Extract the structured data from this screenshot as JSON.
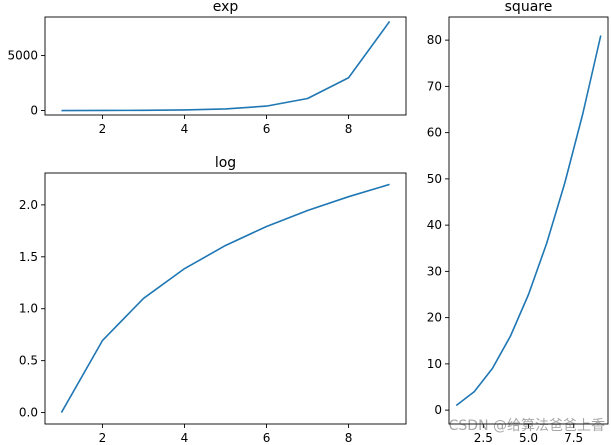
{
  "watermark": "CSDN @给算法爸爸上香",
  "chart_data": [
    {
      "id": "exp",
      "type": "line",
      "title": "exp",
      "xlabel": "",
      "ylabel": "",
      "x": [
        1,
        2,
        3,
        4,
        5,
        6,
        7,
        8,
        9
      ],
      "series": [
        {
          "values": [
            2.72,
            7.39,
            20.09,
            54.6,
            148.41,
            403.43,
            1096.63,
            2980.96,
            8103.08
          ],
          "color": "#1f77b4"
        }
      ],
      "xlim": [
        0.6,
        9.4
      ],
      "ylim": [
        -405,
        8508
      ],
      "xticks": [
        2,
        4,
        6,
        8
      ],
      "xtick_labels": [
        "2",
        "4",
        "6",
        "8"
      ],
      "yticks": [
        0,
        5000
      ],
      "ytick_labels": [
        "0",
        "5000"
      ],
      "grid": false
    },
    {
      "id": "log",
      "type": "line",
      "title": "log",
      "xlabel": "",
      "ylabel": "",
      "x": [
        1,
        2,
        3,
        4,
        5,
        6,
        7,
        8,
        9
      ],
      "series": [
        {
          "values": [
            0.0,
            0.693,
            1.099,
            1.386,
            1.609,
            1.792,
            1.946,
            2.079,
            2.197
          ],
          "color": "#1f77b4"
        }
      ],
      "xlim": [
        0.6,
        9.4
      ],
      "ylim": [
        -0.11,
        2.307
      ],
      "xticks": [
        2,
        4,
        6,
        8
      ],
      "xtick_labels": [
        "2",
        "4",
        "6",
        "8"
      ],
      "yticks": [
        0.0,
        0.5,
        1.0,
        1.5,
        2.0
      ],
      "ytick_labels": [
        "0.0",
        "0.5",
        "1.0",
        "1.5",
        "2.0"
      ],
      "grid": false
    },
    {
      "id": "square",
      "type": "line",
      "title": "square",
      "xlabel": "",
      "ylabel": "",
      "x": [
        1,
        2,
        3,
        4,
        5,
        6,
        7,
        8,
        9
      ],
      "series": [
        {
          "values": [
            1,
            4,
            9,
            16,
            25,
            36,
            49,
            64,
            81
          ],
          "color": "#1f77b4"
        }
      ],
      "xlim": [
        0.6,
        9.4
      ],
      "ylim": [
        -3,
        85
      ],
      "xticks": [
        2.5,
        5.0,
        7.5
      ],
      "xtick_labels": [
        "2.5",
        "5.0",
        "7.5"
      ],
      "yticks": [
        0,
        10,
        20,
        30,
        40,
        50,
        60,
        70,
        80
      ],
      "ytick_labels": [
        "0",
        "10",
        "20",
        "30",
        "40",
        "50",
        "60",
        "70",
        "80"
      ],
      "grid": false
    }
  ]
}
